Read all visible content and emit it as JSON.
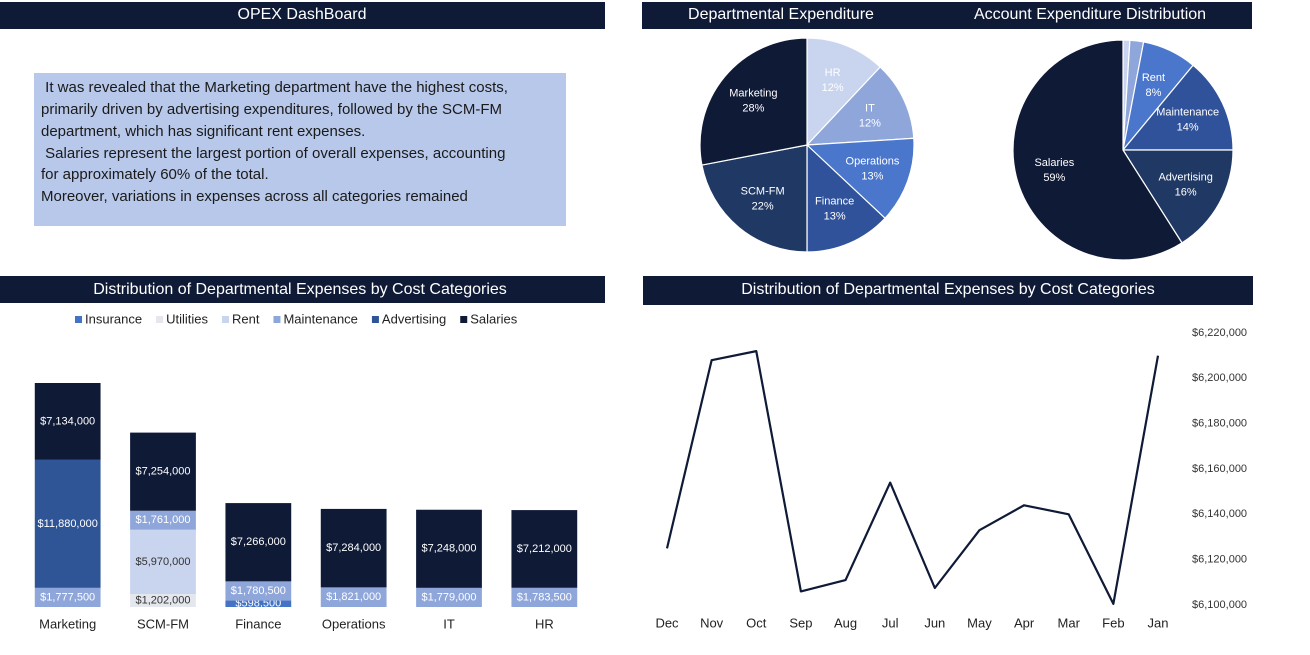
{
  "header": {
    "title": "OPEX DashBoard"
  },
  "summary": {
    "lines": [
      " It was revealed that the Marketing department have the highest costs,",
      "primarily driven by advertising expenditures, followed by the SCM-FM",
      "department, which has significant rent expenses.",
      " Salaries represent the largest portion of overall expenses, accounting",
      "for approximately 60% of the total.",
      "Moreover, variations in expenses across all categories remained"
    ]
  },
  "chart_data": [
    {
      "type": "pie",
      "title": "Departmental Expenditure",
      "categories": [
        "HR",
        "IT",
        "Operations",
        "Finance",
        "SCM-FM",
        "Marketing"
      ],
      "values": [
        12,
        12,
        13,
        13,
        22,
        28
      ],
      "value_labels": [
        "12%",
        "12%",
        "13%",
        "13%",
        "22%",
        "28%"
      ],
      "colors": [
        "#c9d4ee",
        "#8ea6da",
        "#4a76cc",
        "#2f529a",
        "#1f3864",
        "#0f1a36"
      ]
    },
    {
      "type": "pie",
      "title": "Account Expenditure Distribution",
      "categories": [
        null,
        null,
        "Rent",
        "Maintenance",
        "Advertising",
        "Salaries"
      ],
      "values": [
        1,
        2,
        8,
        14,
        16,
        59
      ],
      "value_labels": [
        null,
        null,
        "8%",
        "14%",
        "16%",
        "59%"
      ],
      "colors": [
        "#c9d4ee",
        "#8ea6da",
        "#4a76cc",
        "#2f529a",
        "#1f3864",
        "#0f1a36"
      ]
    },
    {
      "type": "bar",
      "stacked": true,
      "title": "Distribution of Departmental Expenses by Cost Categories",
      "categories": [
        "Marketing",
        "SCM-FM",
        "Finance",
        "Operations",
        "IT",
        "HR"
      ],
      "legend": "top",
      "series": [
        {
          "name": "Insurance",
          "color": "#4472c4",
          "values": [
            null,
            null,
            598500,
            null,
            null,
            null
          ],
          "value_labels": [
            null,
            null,
            "$598,500",
            null,
            null,
            null
          ]
        },
        {
          "name": "Utilities",
          "color": "#e4e7ee",
          "values": [
            null,
            1202000,
            null,
            null,
            null,
            null
          ],
          "value_labels": [
            null,
            "$1,202,000",
            null,
            null,
            null,
            null
          ]
        },
        {
          "name": "Rent",
          "color": "#c9d4ee",
          "values": [
            null,
            5970000,
            null,
            null,
            null,
            null
          ],
          "value_labels": [
            null,
            "$5,970,000",
            null,
            null,
            null,
            null
          ]
        },
        {
          "name": "Maintenance",
          "color": "#8ea6da",
          "values": [
            1777500,
            1761000,
            1780500,
            1821000,
            1779000,
            1783500
          ],
          "value_labels": [
            "$1,777,500",
            "$1,761,000",
            "$1,780,500",
            "$1,821,000",
            "$1,779,000",
            "$1,783,500"
          ]
        },
        {
          "name": "Advertising",
          "color": "#2f5597",
          "values": [
            11880000,
            null,
            null,
            null,
            null,
            null
          ],
          "value_labels": [
            "$11,880,000",
            null,
            null,
            null,
            null,
            null
          ]
        },
        {
          "name": "Salaries",
          "color": "#0f1a36",
          "values": [
            7134000,
            7254000,
            7266000,
            7284000,
            7248000,
            7212000
          ],
          "value_labels": [
            "$7,134,000",
            "$7,254,000",
            "$7,266,000",
            "$7,284,000",
            "$7,248,000",
            "$7,212,000"
          ]
        }
      ]
    },
    {
      "type": "line",
      "title": "Distribution of Departmental Expenses by Cost Categories",
      "categories": [
        "Dec",
        "Nov",
        "Oct",
        "Sep",
        "Aug",
        "Jul",
        "Jun",
        "May",
        "Apr",
        "Mar",
        "Feb",
        "Jan"
      ],
      "values": [
        6125000,
        6208000,
        6212000,
        6106000,
        6111000,
        6154000,
        6107500,
        6133000,
        6144000,
        6140000,
        6100500,
        6210000
      ],
      "color": "#0f1a36",
      "ylim": [
        6100000,
        6220000
      ],
      "yticks": [
        {
          "value": 6100000,
          "label": "$6,100,000"
        },
        {
          "value": 6120000,
          "label": "$6,120,000"
        },
        {
          "value": 6140000,
          "label": "$6,140,000"
        },
        {
          "value": 6160000,
          "label": "$6,160,000"
        },
        {
          "value": 6180000,
          "label": "$6,180,000"
        },
        {
          "value": 6200000,
          "label": "$6,200,000"
        },
        {
          "value": 6220000,
          "label": "$6,220,000"
        }
      ],
      "grid": false
    }
  ]
}
